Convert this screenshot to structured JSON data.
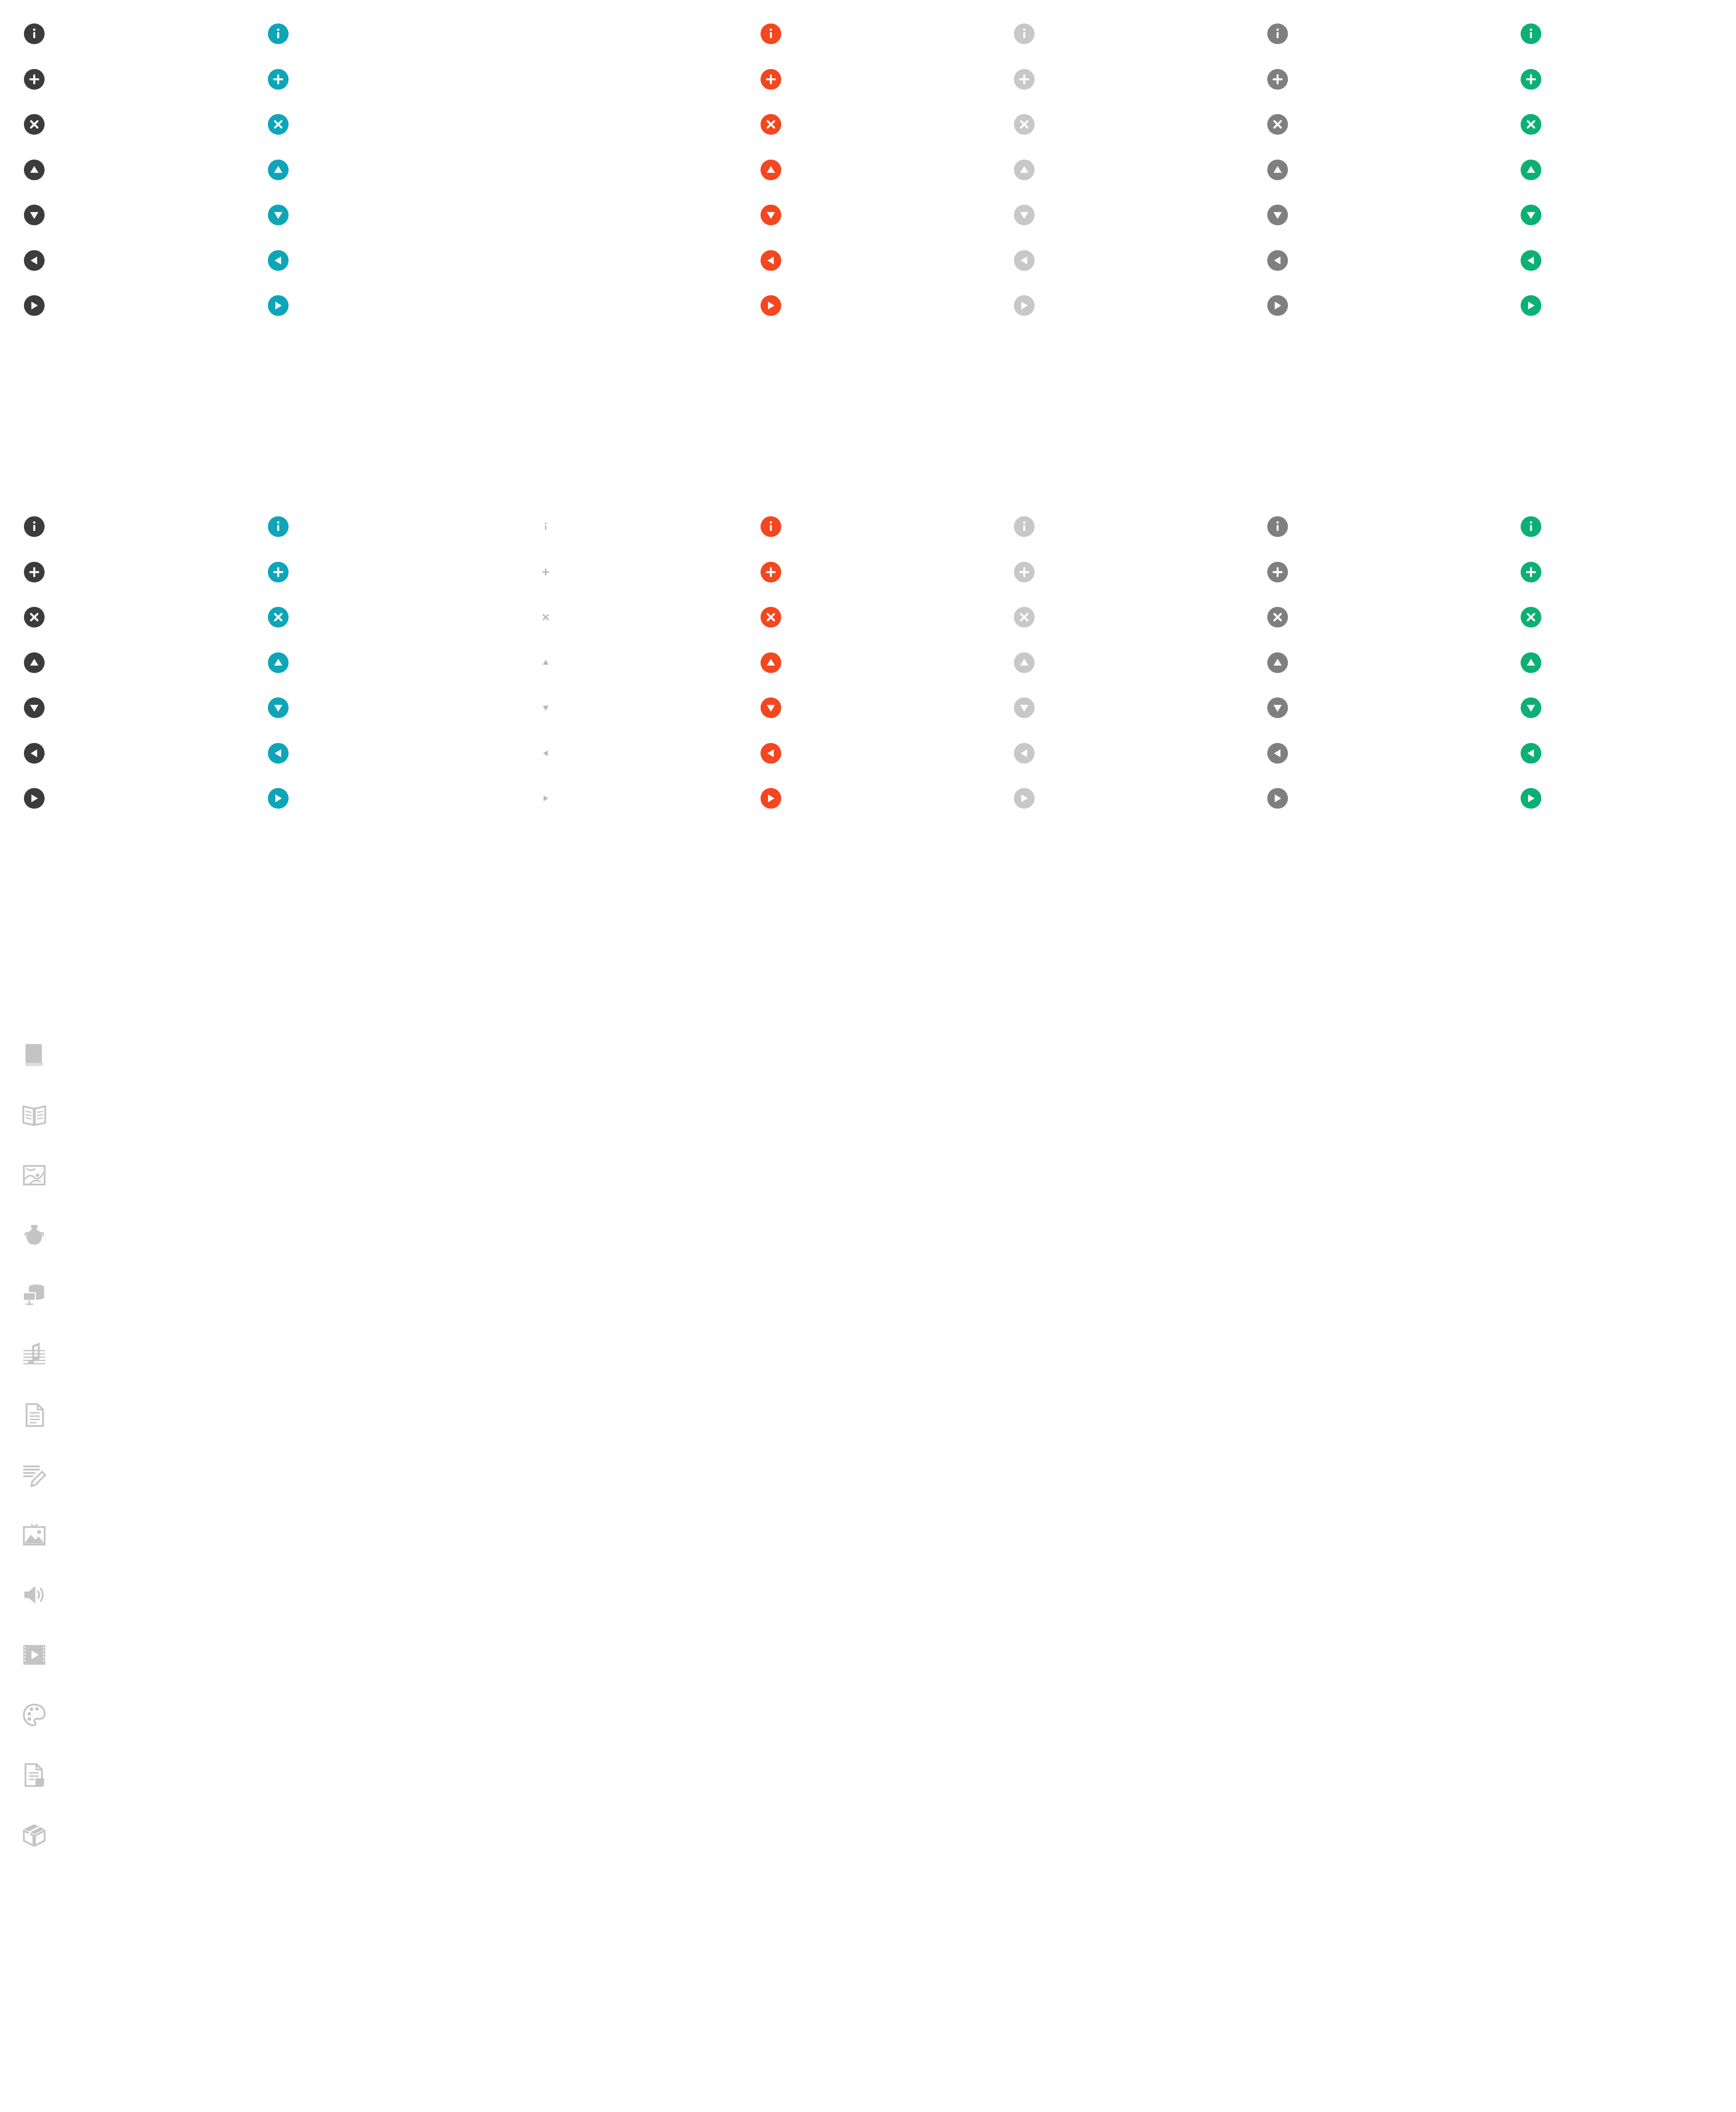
{
  "glyph_order": [
    "info",
    "plus",
    "close",
    "arrow-up",
    "arrow-down",
    "arrow-left",
    "arrow-right"
  ],
  "palette": {
    "dark": "#3c3c3c",
    "teal": "#0ea5b9",
    "plain": "#b8b8b8",
    "red": "#f4461f",
    "light_gray": "#c8c8c8",
    "mid_gray": "#7f7f7f",
    "green": "#0cb074",
    "content_icon_gray": "#c4c4c4"
  },
  "icon_sets": [
    {
      "name": "icon-set-1",
      "columns": [
        {
          "variant": "filled-circle",
          "color": "#3c3c3c"
        },
        {
          "variant": "filled-circle",
          "color": "#0ea5b9"
        },
        {
          "variant": "filled-circle",
          "color": "#f4461f"
        },
        {
          "variant": "filled-circle",
          "color": "#c8c8c8"
        },
        {
          "variant": "filled-circle",
          "color": "#7f7f7f"
        },
        {
          "variant": "filled-circle",
          "color": "#0cb074"
        }
      ]
    },
    {
      "name": "icon-set-2",
      "columns": [
        {
          "variant": "filled-circle",
          "color": "#3c3c3c"
        },
        {
          "variant": "filled-circle",
          "color": "#0ea5b9"
        },
        {
          "variant": "glyph-only",
          "color": "#b8b8b8"
        },
        {
          "variant": "filled-circle",
          "color": "#f4461f"
        },
        {
          "variant": "filled-circle",
          "color": "#c8c8c8"
        },
        {
          "variant": "filled-circle",
          "color": "#7f7f7f"
        },
        {
          "variant": "filled-circle",
          "color": "#0cb074"
        }
      ]
    }
  ],
  "content_type_icons": [
    "book-icon",
    "open-book-icon",
    "map-icon",
    "vase-icon",
    "database-icon",
    "sheet-music-icon",
    "document-icon",
    "edit-note-icon",
    "image-icon",
    "audio-icon",
    "video-icon",
    "palette-icon",
    "file-icon",
    "package-icon"
  ]
}
